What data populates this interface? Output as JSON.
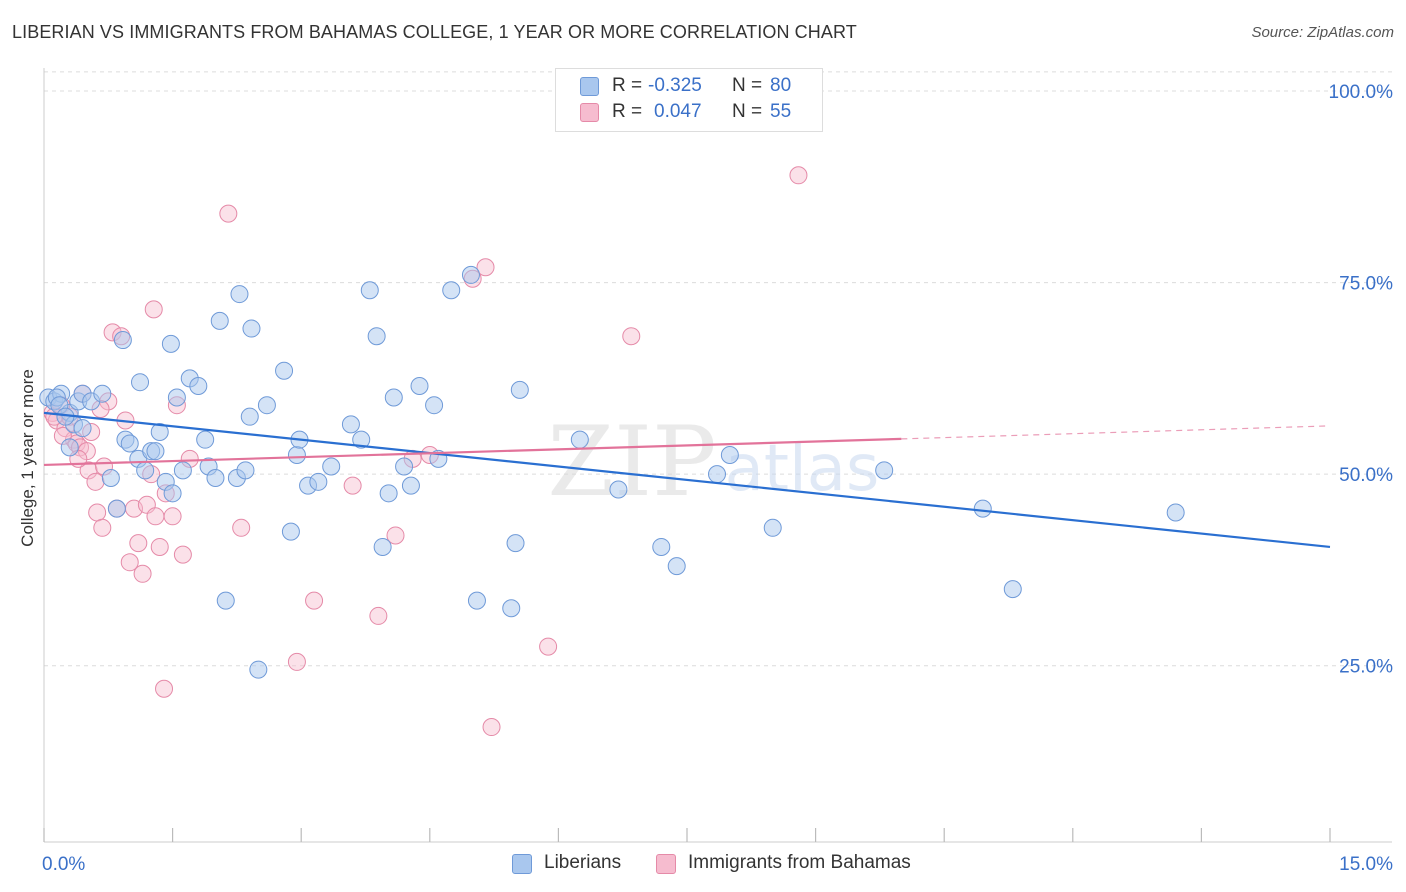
{
  "title": "LIBERIAN VS IMMIGRANTS FROM BAHAMAS COLLEGE, 1 YEAR OR MORE CORRELATION CHART",
  "source": "Source: ZipAtlas.com",
  "watermark": {
    "zip": "ZIP",
    "atlas": "atlas"
  },
  "legend_stats": {
    "rows": [
      {
        "r_label": "R =",
        "r_value": "-0.325",
        "n_label": "N =",
        "n_value": "80",
        "color": "#a9c7ee",
        "edge": "#6f9ad8"
      },
      {
        "r_label": "R =",
        "r_value": "0.047",
        "n_label": "N =",
        "n_value": "55",
        "color": "#f6bccf",
        "edge": "#e58aa8"
      }
    ]
  },
  "bottom_legend": {
    "liberians": "Liberians",
    "bahamas": "Immigrants from Bahamas"
  },
  "chart_data": {
    "type": "scatter",
    "xlabel": "",
    "ylabel": "College, 1 year or more",
    "xlim": [
      0,
      15
    ],
    "ylim": [
      2,
      103
    ],
    "x_tick_labels": [
      {
        "value": 0,
        "label": "0.0%"
      },
      {
        "value": 15,
        "label": "15.0%"
      }
    ],
    "y_tick_labels": [
      {
        "value": 100,
        "label": "100.0%"
      },
      {
        "value": 75,
        "label": "75.0%"
      },
      {
        "value": 50,
        "label": "50.0%"
      },
      {
        "value": 25,
        "label": "25.0%"
      }
    ],
    "grid": true,
    "colors": {
      "liberians": "#6f9ad8",
      "liberians_fill": "#a9c7ee",
      "bahamas": "#e58aa8",
      "bahamas_fill": "#f6bccf",
      "line_blue": "#2a6fd1",
      "line_pink": "#e2739a",
      "tick_label": "#3a70c8"
    },
    "series": [
      {
        "name": "Liberians",
        "points": [
          [
            0.05,
            60.0
          ],
          [
            0.12,
            59.5
          ],
          [
            0.2,
            60.5
          ],
          [
            0.3,
            58.0
          ],
          [
            0.35,
            56.5
          ],
          [
            0.4,
            59.5
          ],
          [
            0.45,
            60.5
          ],
          [
            0.15,
            60.0
          ],
          [
            0.18,
            59.0
          ],
          [
            0.25,
            57.5
          ],
          [
            0.3,
            53.5
          ],
          [
            0.45,
            56.0
          ],
          [
            0.55,
            59.5
          ],
          [
            0.68,
            60.5
          ],
          [
            0.78,
            49.5
          ],
          [
            0.85,
            45.5
          ],
          [
            0.92,
            67.5
          ],
          [
            0.95,
            54.5
          ],
          [
            1.0,
            54.0
          ],
          [
            1.1,
            52.0
          ],
          [
            1.12,
            62.0
          ],
          [
            1.18,
            50.5
          ],
          [
            1.25,
            53.0
          ],
          [
            1.3,
            53.0
          ],
          [
            1.35,
            55.5
          ],
          [
            1.42,
            49.0
          ],
          [
            1.48,
            67.0
          ],
          [
            1.5,
            47.5
          ],
          [
            1.55,
            60.0
          ],
          [
            1.62,
            50.5
          ],
          [
            1.7,
            62.5
          ],
          [
            1.8,
            61.5
          ],
          [
            1.88,
            54.5
          ],
          [
            1.92,
            51.0
          ],
          [
            2.0,
            49.5
          ],
          [
            2.05,
            70.0
          ],
          [
            2.12,
            33.5
          ],
          [
            2.25,
            49.5
          ],
          [
            2.28,
            73.5
          ],
          [
            2.35,
            50.5
          ],
          [
            2.4,
            57.5
          ],
          [
            2.42,
            69.0
          ],
          [
            2.5,
            24.5
          ],
          [
            2.6,
            59.0
          ],
          [
            2.8,
            63.5
          ],
          [
            2.88,
            42.5
          ],
          [
            2.95,
            52.5
          ],
          [
            2.98,
            54.5
          ],
          [
            3.08,
            48.5
          ],
          [
            3.2,
            49.0
          ],
          [
            3.35,
            51.0
          ],
          [
            3.58,
            56.5
          ],
          [
            3.7,
            54.5
          ],
          [
            3.8,
            74.0
          ],
          [
            3.88,
            68.0
          ],
          [
            3.95,
            40.5
          ],
          [
            4.02,
            47.5
          ],
          [
            4.08,
            60.0
          ],
          [
            4.2,
            51.0
          ],
          [
            4.28,
            48.5
          ],
          [
            4.38,
            61.5
          ],
          [
            4.55,
            59.0
          ],
          [
            4.6,
            52.0
          ],
          [
            4.75,
            74.0
          ],
          [
            4.98,
            76.0
          ],
          [
            5.05,
            33.5
          ],
          [
            5.45,
            32.5
          ],
          [
            5.5,
            41.0
          ],
          [
            5.55,
            61.0
          ],
          [
            6.25,
            54.5
          ],
          [
            6.7,
            48.0
          ],
          [
            7.2,
            40.5
          ],
          [
            7.38,
            38.0
          ],
          [
            7.85,
            50.0
          ],
          [
            8.0,
            52.5
          ],
          [
            8.5,
            43.0
          ],
          [
            9.8,
            50.5
          ],
          [
            10.95,
            45.5
          ],
          [
            11.3,
            35.0
          ],
          [
            13.2,
            45.0
          ]
        ]
      },
      {
        "name": "Immigrants from Bahamas",
        "points": [
          [
            0.1,
            58.0
          ],
          [
            0.15,
            57.0
          ],
          [
            0.2,
            59.0
          ],
          [
            0.25,
            56.0
          ],
          [
            0.3,
            57.5
          ],
          [
            0.35,
            54.5
          ],
          [
            0.38,
            54.0
          ],
          [
            0.42,
            53.5
          ],
          [
            0.45,
            60.5
          ],
          [
            0.5,
            53.0
          ],
          [
            0.52,
            50.5
          ],
          [
            0.55,
            55.5
          ],
          [
            0.6,
            49.0
          ],
          [
            0.62,
            45.0
          ],
          [
            0.68,
            43.0
          ],
          [
            0.7,
            51.0
          ],
          [
            0.75,
            59.5
          ],
          [
            0.8,
            68.5
          ],
          [
            0.85,
            45.5
          ],
          [
            0.9,
            68.0
          ],
          [
            0.95,
            57.0
          ],
          [
            1.0,
            38.5
          ],
          [
            1.05,
            45.5
          ],
          [
            1.1,
            41.0
          ],
          [
            1.15,
            37.0
          ],
          [
            1.2,
            46.0
          ],
          [
            1.28,
            71.5
          ],
          [
            1.3,
            44.5
          ],
          [
            1.35,
            40.5
          ],
          [
            1.4,
            22.0
          ],
          [
            1.42,
            47.5
          ],
          [
            1.5,
            44.5
          ],
          [
            1.55,
            59.0
          ],
          [
            1.62,
            39.5
          ],
          [
            1.7,
            52.0
          ],
          [
            2.15,
            84.0
          ],
          [
            2.3,
            43.0
          ],
          [
            2.95,
            25.5
          ],
          [
            3.15,
            33.5
          ],
          [
            3.6,
            48.5
          ],
          [
            3.9,
            31.5
          ],
          [
            4.1,
            42.0
          ],
          [
            4.3,
            52.0
          ],
          [
            4.5,
            52.5
          ],
          [
            5.0,
            75.5
          ],
          [
            5.15,
            77.0
          ],
          [
            5.22,
            17.0
          ],
          [
            5.88,
            27.5
          ],
          [
            6.85,
            68.0
          ],
          [
            8.8,
            89.0
          ],
          [
            0.22,
            55.0
          ],
          [
            0.4,
            52.0
          ],
          [
            0.66,
            58.5
          ],
          [
            1.25,
            50.0
          ],
          [
            0.12,
            57.5
          ]
        ]
      }
    ],
    "trend_lines": [
      {
        "name": "Liberians",
        "x": [
          0,
          15
        ],
        "y": [
          58.0,
          40.5
        ],
        "dashed_from": null
      },
      {
        "name": "Immigrants from Bahamas",
        "x": [
          0,
          15
        ],
        "y": [
          51.2,
          56.3
        ],
        "dashed_from": 10.0
      }
    ]
  }
}
